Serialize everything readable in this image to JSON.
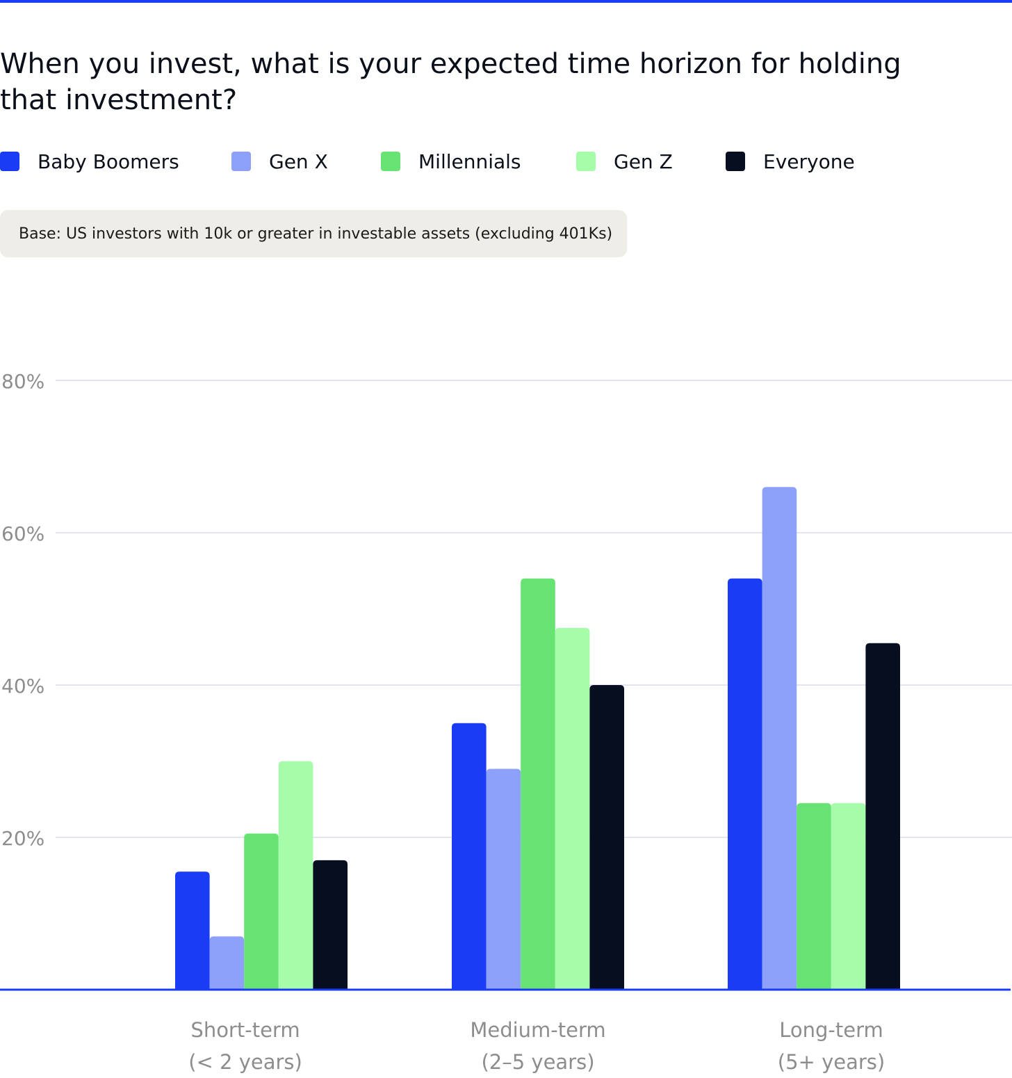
{
  "title": "When you invest, what is your expected time horizon for holding that investment?",
  "base_note": "Base: US investors with 10k or greater in investable assets (excluding 401Ks)",
  "colors": {
    "accent": "#1a3cf5",
    "gridline": "#dcdcee",
    "tick_text": "#8d8d8d",
    "category_text": "#8d8d8d",
    "base_note_bg": "#efede8"
  },
  "legend": [
    {
      "label": "Baby Boomers",
      "color": "#1a3cf5"
    },
    {
      "label": "Gen X",
      "color": "#8da0fa"
    },
    {
      "label": "Millennials",
      "color": "#67e374"
    },
    {
      "label": "Gen Z",
      "color": "#a6fca8"
    },
    {
      "label": "Everyone",
      "color": "#060e1f"
    }
  ],
  "chart_data": {
    "type": "bar",
    "title": "When you invest, what is your expected time horizon for holding that investment?",
    "categories": [
      {
        "line1": "Short-term",
        "line2": "(< 2 years)"
      },
      {
        "line1": "Medium-term",
        "line2": "(2–5 years)"
      },
      {
        "line1": "Long-term",
        "line2": "(5+ years)"
      }
    ],
    "series": [
      {
        "name": "Baby Boomers",
        "color": "#1a3cf5",
        "values": [
          15.5,
          35,
          54
        ]
      },
      {
        "name": "Gen X",
        "color": "#8da0fa",
        "values": [
          7,
          29,
          66
        ]
      },
      {
        "name": "Millennials",
        "color": "#67e374",
        "values": [
          20.5,
          54,
          24.5
        ]
      },
      {
        "name": "Gen Z",
        "color": "#a6fca8",
        "values": [
          30,
          47.5,
          24.5
        ]
      },
      {
        "name": "Everyone",
        "color": "#060e1f",
        "values": [
          17,
          40,
          45.5
        ]
      }
    ],
    "ylim": [
      0,
      80
    ],
    "yticks": [
      {
        "value": 20,
        "label": "20%"
      },
      {
        "value": 40,
        "label": "40%"
      },
      {
        "value": 60,
        "label": "60%"
      },
      {
        "value": 80,
        "label": "80%"
      }
    ],
    "xlabel": "",
    "ylabel": "",
    "grid": true,
    "legend_position": "top"
  }
}
